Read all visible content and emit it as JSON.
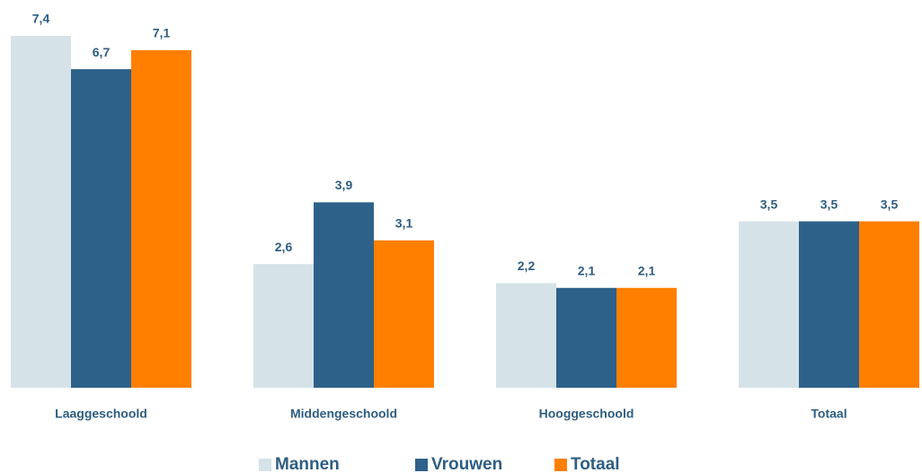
{
  "chart_data": {
    "type": "bar",
    "categories": [
      "Laaggeschoold",
      "Middengeschoold",
      "Hooggeschoold",
      "Totaal"
    ],
    "series": [
      {
        "name": "Mannen",
        "color": "#d5e3e8",
        "values": [
          7.4,
          2.6,
          2.2,
          3.5
        ],
        "value_labels": [
          "7,4",
          "2,6",
          "2,2",
          "3,5"
        ]
      },
      {
        "name": "Vrouwen",
        "color": "#2e6189",
        "values": [
          6.7,
          3.9,
          2.1,
          3.5
        ],
        "value_labels": [
          "6,7",
          "3,9",
          "2,1",
          "3,5"
        ]
      },
      {
        "name": "Totaal",
        "color": "#ff7f00",
        "values": [
          7.1,
          3.1,
          2.1,
          3.5
        ],
        "value_labels": [
          "7,1",
          "3,1",
          "2,1",
          "3,5"
        ]
      }
    ]
  }
}
